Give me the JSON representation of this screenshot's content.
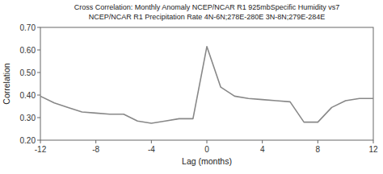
{
  "chart_data": {
    "type": "line",
    "title": "Cross Correlation: Monthly Anomaly NCEP/NCAR R1 925mbSpecific Humidity vs7",
    "subtitle": "NCEP/NCAR R1  Precipitation Rate 4N-6N;278E-280E 3N-8N;279E-284E",
    "x_label": "Lag (months)",
    "y_label": "Correlation",
    "x": [
      -12,
      -11,
      -10,
      -9,
      -8,
      -7,
      -6,
      -5,
      -4,
      -3,
      -2,
      -1,
      0,
      1,
      2,
      3,
      4,
      5,
      6,
      7,
      8,
      9,
      10,
      11,
      12
    ],
    "values": [
      0.395,
      0.365,
      0.345,
      0.325,
      0.32,
      0.315,
      0.315,
      0.285,
      0.275,
      0.285,
      0.295,
      0.295,
      0.615,
      0.435,
      0.395,
      0.385,
      0.38,
      0.375,
      0.37,
      0.28,
      0.28,
      0.345,
      0.375,
      0.385,
      0.385
    ],
    "color": "#888888",
    "xlim": [
      -12,
      12
    ],
    "ylim": [
      0.2,
      0.7
    ],
    "xticks": [
      -12,
      -8,
      -4,
      0,
      4,
      8,
      12
    ],
    "yticks": [
      {
        "value": 0.2,
        "label": "0.20"
      },
      {
        "value": 0.3,
        "label": "0.30"
      },
      {
        "value": 0.4,
        "label": "0.40"
      },
      {
        "value": 0.5,
        "label": "0.50"
      },
      {
        "value": 0.6,
        "label": "0.60"
      },
      {
        "value": 0.7,
        "label": "0.70"
      }
    ],
    "grid": false
  }
}
